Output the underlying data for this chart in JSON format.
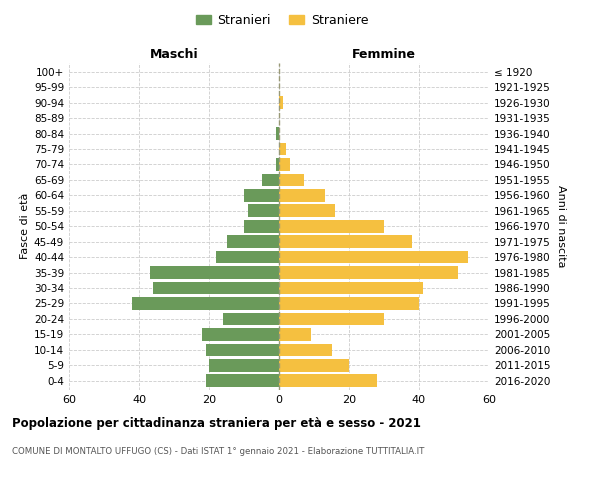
{
  "age_groups": [
    "0-4",
    "5-9",
    "10-14",
    "15-19",
    "20-24",
    "25-29",
    "30-34",
    "35-39",
    "40-44",
    "45-49",
    "50-54",
    "55-59",
    "60-64",
    "65-69",
    "70-74",
    "75-79",
    "80-84",
    "85-89",
    "90-94",
    "95-99",
    "100+"
  ],
  "birth_years": [
    "2016-2020",
    "2011-2015",
    "2006-2010",
    "2001-2005",
    "1996-2000",
    "1991-1995",
    "1986-1990",
    "1981-1985",
    "1976-1980",
    "1971-1975",
    "1966-1970",
    "1961-1965",
    "1956-1960",
    "1951-1955",
    "1946-1950",
    "1941-1945",
    "1936-1940",
    "1931-1935",
    "1926-1930",
    "1921-1925",
    "≤ 1920"
  ],
  "males": [
    21,
    20,
    21,
    22,
    16,
    42,
    36,
    37,
    18,
    15,
    10,
    9,
    10,
    5,
    1,
    0,
    1,
    0,
    0,
    0,
    0
  ],
  "females": [
    28,
    20,
    15,
    9,
    30,
    40,
    41,
    51,
    54,
    38,
    30,
    16,
    13,
    7,
    3,
    2,
    0,
    0,
    1,
    0,
    0
  ],
  "male_color": "#6a9a5a",
  "female_color": "#f5c040",
  "background_color": "#ffffff",
  "grid_color": "#cccccc",
  "title": "Popolazione per cittadinanza straniera per età e sesso - 2021",
  "subtitle": "COMUNE DI MONTALTO UFFUGO (CS) - Dati ISTAT 1° gennaio 2021 - Elaborazione TUTTITALIA.IT",
  "xlabel_left": "Maschi",
  "xlabel_right": "Femmine",
  "ylabel_left": "Fasce di età",
  "ylabel_right": "Anni di nascita",
  "legend_male": "Stranieri",
  "legend_female": "Straniere",
  "xlim": 60,
  "bar_height": 0.82
}
